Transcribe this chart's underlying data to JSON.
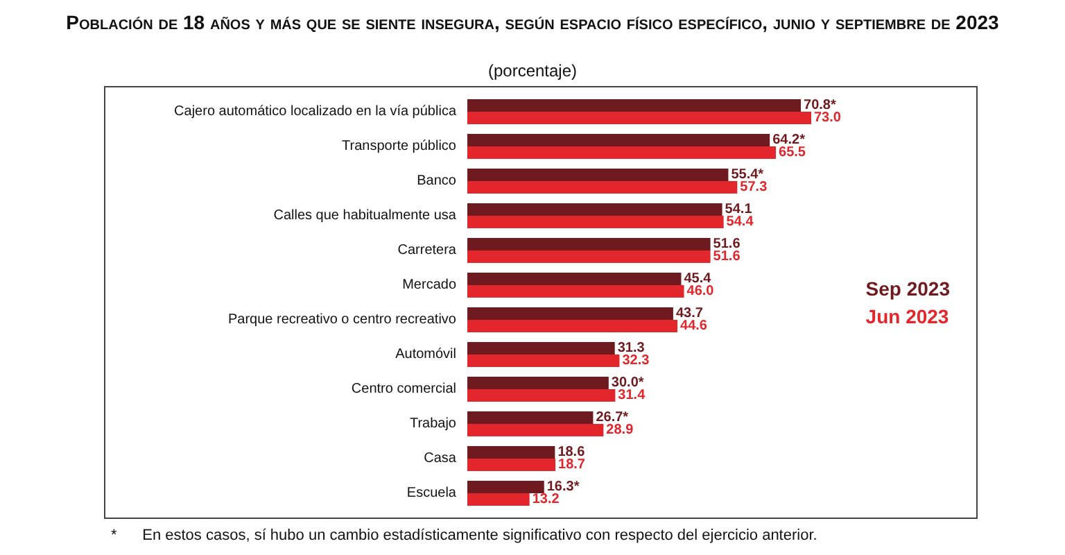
{
  "chart_data": {
    "type": "bar",
    "orientation": "horizontal",
    "title": "Población de 18 años y más que se siente insegura, según espacio físico específico, junio y septiembre de 2023",
    "subtitle": "(porcentaje)",
    "categories": [
      "Cajero automático localizado en la vía pública",
      "Transporte público",
      "Banco",
      "Calles que habitualmente usa",
      "Carretera",
      "Mercado",
      "Parque recreativo o centro recreativo",
      "Automóvil",
      "Centro comercial",
      "Trabajo",
      "Casa",
      "Escuela"
    ],
    "series": [
      {
        "name": "Sep 2023",
        "color": "#6e1a1e",
        "values": [
          70.8,
          64.2,
          55.4,
          54.1,
          51.6,
          45.4,
          43.7,
          31.3,
          30.0,
          26.7,
          18.6,
          16.3
        ],
        "value_labels": [
          "70.8*",
          "64.2*",
          "55.4*",
          "54.1",
          "51.6",
          "45.4",
          "43.7",
          "31.3",
          "30.0*",
          "26.7*",
          "18.6",
          "16.3*"
        ]
      },
      {
        "name": "Jun 2023",
        "color": "#e3262c",
        "values": [
          73.0,
          65.5,
          57.3,
          54.4,
          51.6,
          46.0,
          44.6,
          32.3,
          31.4,
          28.9,
          18.7,
          13.2
        ],
        "value_labels": [
          "73.0",
          "65.5",
          "57.3",
          "54.4",
          "51.6",
          "46.0",
          "44.6",
          "32.3",
          "31.4",
          "28.9",
          "18.7",
          "13.2"
        ]
      }
    ],
    "legend": "right",
    "annotations": [
      "*      En estos casos, sí hubo un cambio estadísticamente significativo con respecto del ejercicio anterior."
    ]
  }
}
